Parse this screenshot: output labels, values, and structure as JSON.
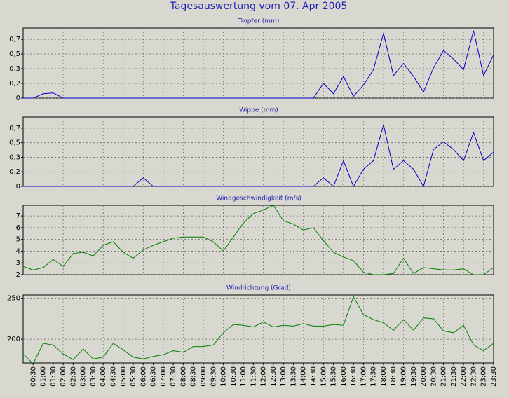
{
  "title": "Tagesauswertung vom 07. Apr 2005",
  "categories": [
    null,
    "00:30",
    "01:00",
    "01:30",
    "02:00",
    "02:30",
    "03:00",
    "03:30",
    "04:00",
    "04:30",
    "05:00",
    "05:30",
    "06:00",
    "06:30",
    "07:00",
    "07:30",
    "08:00",
    "08:30",
    "09:00",
    "09:30",
    "10:00",
    "10:30",
    "11:00",
    "11:30",
    "12:00",
    "12:30",
    "13:00",
    "13:30",
    "14:00",
    "14:30",
    "15:00",
    "15:30",
    "16:00",
    "16:30",
    "17:00",
    "17:30",
    "18:00",
    "18:30",
    "19:00",
    "19:30",
    "20:00",
    "20:30",
    "21:00",
    "21:30",
    "22:00",
    "22:30",
    "23:00",
    "23:30"
  ],
  "chart_data": [
    {
      "type": "line",
      "title": "Tropfer (mm)",
      "ylim": [
        0,
        0.81
      ],
      "yticks": [
        0,
        {
          "value": 0.17,
          "label": "0,2"
        },
        {
          "value": 0.34,
          "label": "0,3"
        },
        {
          "value": 0.51,
          "label": "0,5"
        },
        {
          "value": 0.68,
          "label": "0,7"
        }
      ],
      "series": [
        {
          "color": "#0000c8",
          "values": [
            0,
            0,
            0.05,
            0.06,
            0,
            0,
            0,
            0,
            0,
            0,
            0,
            0,
            0,
            0,
            0,
            0,
            0,
            0,
            0,
            0,
            0,
            0,
            0,
            0,
            0,
            0,
            0,
            0,
            0,
            0,
            0.17,
            0.05,
            0.25,
            0.02,
            0.15,
            0.33,
            0.75,
            0.26,
            0.4,
            0.25,
            0.07,
            0.35,
            0.55,
            0.45,
            0.33,
            0.78,
            0.26,
            0.5
          ]
        }
      ]
    },
    {
      "type": "line",
      "title": "Wippe (mm)",
      "ylim": [
        0,
        0.81
      ],
      "yticks": [
        0,
        {
          "value": 0.17,
          "label": "0,2"
        },
        {
          "value": 0.34,
          "label": "0,3"
        },
        {
          "value": 0.51,
          "label": "0,5"
        },
        {
          "value": 0.68,
          "label": "0,7"
        }
      ],
      "series": [
        {
          "color": "#0000c8",
          "values": [
            0,
            0,
            0,
            0,
            0,
            0,
            0,
            0,
            0,
            0,
            0,
            0,
            0.1,
            0,
            0,
            0,
            0,
            0,
            0,
            0,
            0,
            0,
            0,
            0,
            0,
            0,
            0,
            0,
            0,
            0,
            0.1,
            0,
            0.3,
            0,
            0.2,
            0.3,
            0.72,
            0.2,
            0.3,
            0.2,
            0,
            0.43,
            0.52,
            0.43,
            0.3,
            0.63,
            0.3,
            0.4
          ]
        }
      ]
    },
    {
      "type": "line",
      "title": "Windgeschwindigkeit (m/s)",
      "ylim": [
        2,
        7.9
      ],
      "yticks": [
        2,
        3,
        4,
        5,
        6,
        7
      ],
      "series": [
        {
          "color": "#008000",
          "values": [
            2.7,
            2.4,
            2.6,
            3.3,
            2.7,
            3.8,
            3.9,
            3.6,
            4.5,
            4.8,
            3.9,
            3.4,
            4.1,
            4.5,
            4.8,
            5.1,
            5.2,
            5.2,
            5.2,
            4.8,
            4.0,
            5.2,
            6.4,
            7.2,
            7.5,
            7.9,
            6.6,
            6.3,
            5.8,
            6.0,
            4.9,
            3.9,
            3.5,
            3.2,
            2.2,
            2.0,
            2.0,
            2.1,
            3.4,
            2.1,
            2.6,
            2.5,
            2.4,
            2.4,
            2.5,
            2.0,
            2.0,
            2.6
          ]
        }
      ]
    },
    {
      "type": "line",
      "title": "Windrichtung (Grad)",
      "ylim": [
        171,
        254
      ],
      "yticks": [
        200,
        250
      ],
      "series": [
        {
          "color": "#008000",
          "values": [
            182,
            170,
            195,
            193,
            182,
            175,
            188,
            176,
            178,
            195,
            187,
            178,
            176,
            179,
            181,
            186,
            184,
            191,
            191,
            193,
            208,
            218,
            217,
            215,
            221,
            215,
            217,
            216,
            219,
            216,
            216,
            218,
            217,
            252,
            230,
            224,
            220,
            211,
            224,
            211,
            226,
            225,
            210,
            208,
            217,
            193,
            186,
            195
          ]
        }
      ]
    }
  ]
}
